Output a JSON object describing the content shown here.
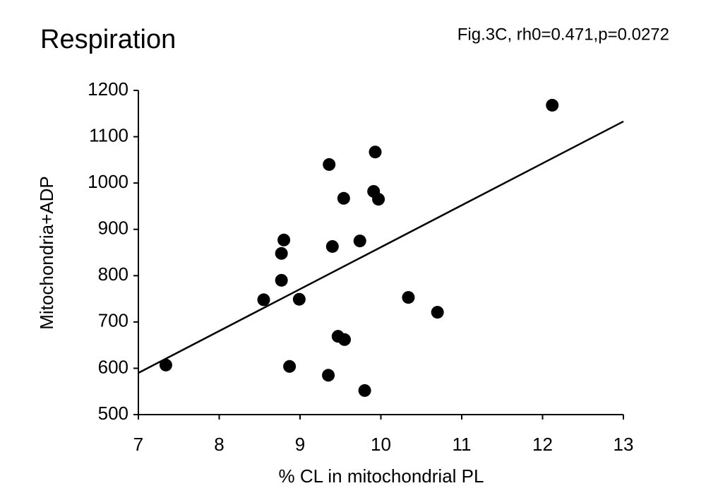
{
  "chart_data": {
    "type": "scatter",
    "title": "Respiration",
    "annotation": "Fig.3C, rh0=0.471,p=0.0272",
    "x_label": "% CL in mitochondrial PL",
    "y_label": "Mitochondria+ADP",
    "x": [
      7.34,
      8.55,
      8.77,
      8.77,
      8.8,
      8.99,
      8.87,
      9.35,
      9.36,
      9.4,
      9.54,
      9.47,
      9.55,
      9.74,
      9.8,
      9.93,
      9.91,
      9.97,
      10.34,
      10.7,
      12.12
    ],
    "values": [
      607,
      748,
      790,
      848,
      877,
      749,
      604,
      585,
      1040,
      863,
      967,
      669,
      662,
      875,
      552,
      1067,
      982,
      965,
      753,
      721,
      1168
    ],
    "color": "#000000",
    "fit_line": {
      "x": [
        7,
        13
      ],
      "y": [
        590,
        1133
      ]
    },
    "xlim": [
      7,
      13
    ],
    "xticks": [
      7,
      8,
      9,
      10,
      11,
      12,
      13
    ],
    "ylim": [
      500,
      1200
    ],
    "yticks": [
      500,
      600,
      700,
      800,
      900,
      1000,
      1100,
      1200
    ]
  }
}
